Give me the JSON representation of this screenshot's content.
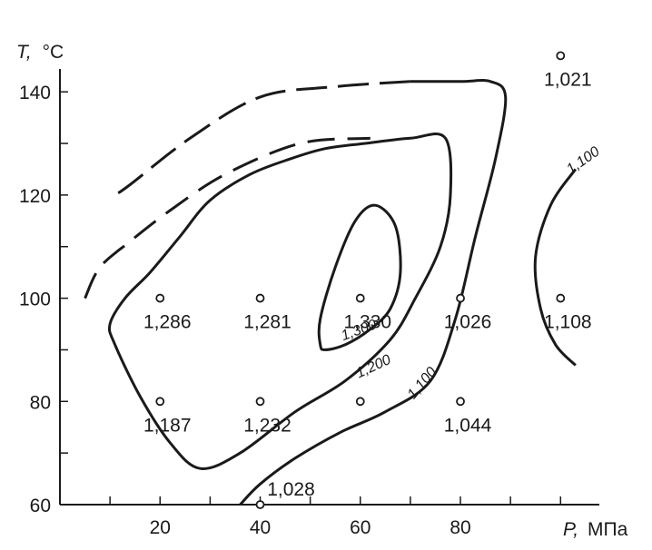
{
  "chart_data": {
    "type": "contour",
    "xlabel": {
      "symbol": "P,",
      "unit": "МПа"
    },
    "ylabel": {
      "symbol": "T,",
      "unit": "°C"
    },
    "xlim": [
      0,
      115
    ],
    "ylim": [
      60,
      149
    ],
    "x_ticks": [
      {
        "value": 10,
        "label": ""
      },
      {
        "value": 20,
        "label": "20"
      },
      {
        "value": 30,
        "label": ""
      },
      {
        "value": 40,
        "label": "40"
      },
      {
        "value": 50,
        "label": ""
      },
      {
        "value": 60,
        "label": "60"
      },
      {
        "value": 70,
        "label": ""
      },
      {
        "value": 80,
        "label": "80"
      },
      {
        "value": 90,
        "label": ""
      },
      {
        "value": 100,
        "label": ""
      }
    ],
    "y_ticks": [
      {
        "value": 60,
        "label": "60"
      },
      {
        "value": 70,
        "label": ""
      },
      {
        "value": 80,
        "label": "80"
      },
      {
        "value": 90,
        "label": ""
      },
      {
        "value": 100,
        "label": "100"
      },
      {
        "value": 110,
        "label": ""
      },
      {
        "value": 120,
        "label": "120"
      },
      {
        "value": 130,
        "label": ""
      },
      {
        "value": 140,
        "label": "140"
      }
    ],
    "points": [
      {
        "x": 20,
        "y": 100,
        "label": "1,286"
      },
      {
        "x": 40,
        "y": 100,
        "label": "1,281"
      },
      {
        "x": 60,
        "y": 100,
        "label": "1,330"
      },
      {
        "x": 80,
        "y": 100,
        "label": "1,026"
      },
      {
        "x": 100,
        "y": 100,
        "label": "1,108"
      },
      {
        "x": 20,
        "y": 80,
        "label": "1,187"
      },
      {
        "x": 40,
        "y": 80,
        "label": "1,232"
      },
      {
        "x": 60,
        "y": 80,
        "label": ""
      },
      {
        "x": 80,
        "y": 80,
        "label": "1,044"
      },
      {
        "x": 40,
        "y": 60,
        "label": "1,028"
      },
      {
        "x": 100,
        "y": 147,
        "label": "1,021"
      }
    ],
    "contours": [
      {
        "level": "1,300",
        "style": "solid",
        "closed": true,
        "path": [
          [
            63,
            118
          ],
          [
            67,
            114
          ],
          [
            68,
            105
          ],
          [
            66,
            98
          ],
          [
            62,
            94
          ],
          [
            57,
            91
          ],
          [
            53,
            90
          ],
          [
            52,
            91
          ],
          [
            52,
            96
          ],
          [
            55,
            106
          ],
          [
            59,
            115
          ]
        ],
        "label_at": [
          60,
          93
        ],
        "label_angle": -20
      },
      {
        "level": "1,200",
        "style": "solid",
        "closed": true,
        "path": [
          [
            77,
            131
          ],
          [
            78,
            120
          ],
          [
            76,
            110
          ],
          [
            71,
            100
          ],
          [
            66,
            92
          ],
          [
            57,
            84
          ],
          [
            47,
            78
          ],
          [
            36,
            70
          ],
          [
            28,
            67
          ],
          [
            22,
            72
          ],
          [
            16,
            81
          ],
          [
            11,
            91
          ],
          [
            10,
            95
          ],
          [
            13,
            100
          ],
          [
            18,
            105
          ],
          [
            24,
            112
          ],
          [
            30,
            119
          ],
          [
            38,
            124
          ],
          [
            46,
            127
          ],
          [
            53,
            129
          ],
          [
            61,
            130
          ],
          [
            70,
            131
          ]
        ],
        "label_at": [
          63,
          86
        ],
        "label_angle": -25
      },
      {
        "level": "1,100",
        "style": "solid",
        "open": true,
        "path": [
          [
            36,
            60
          ],
          [
            40,
            64
          ],
          [
            47,
            69
          ],
          [
            56,
            74
          ],
          [
            65,
            78
          ],
          [
            74,
            84
          ],
          [
            79,
            96
          ],
          [
            83,
            112
          ],
          [
            87,
            127
          ],
          [
            89,
            139
          ],
          [
            86,
            142
          ],
          [
            80,
            142
          ],
          [
            70,
            142
          ]
        ],
        "label_at": [
          73,
          83
        ],
        "label_angle": -50
      },
      {
        "level": "1,100",
        "style": "dashed",
        "open": true,
        "path": [
          [
            70,
            142
          ],
          [
            55,
            141
          ],
          [
            40,
            139
          ],
          [
            26,
            131
          ],
          [
            14,
            122
          ],
          [
            11,
            120
          ]
        ],
        "dash_path": [
          [
            5,
            100
          ],
          [
            8,
            106
          ],
          [
            14,
            111
          ],
          [
            22,
            117
          ],
          [
            33,
            124
          ],
          [
            48,
            130
          ],
          [
            62,
            131
          ]
        ],
        "label_at": null
      },
      {
        "level": "1,100",
        "style": "solid",
        "open": true,
        "path": [
          [
            103,
            125
          ],
          [
            98,
            118
          ],
          [
            95,
            108
          ],
          [
            96,
            98
          ],
          [
            99,
            91
          ],
          [
            103,
            87
          ]
        ],
        "label_at": [
          105,
          126
        ],
        "label_angle": -35
      }
    ]
  }
}
